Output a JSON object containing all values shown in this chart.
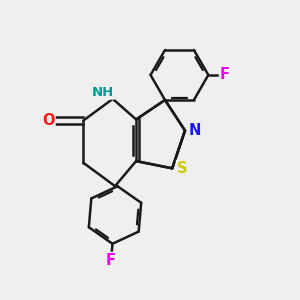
{
  "background_color": "#efefef",
  "bond_color": "#1a1a1a",
  "bond_width": 1.8,
  "atom_colors": {
    "F": "#ee00ee",
    "N": "#1515ff",
    "O": "#ff1515",
    "S": "#cccc00",
    "NH_color": "#009999",
    "C": "#1a1a1a"
  },
  "font_size_atom": 9.5,
  "fig_width": 3.0,
  "fig_height": 3.0,
  "xlim": [
    -2.0,
    2.5
  ],
  "ylim": [
    -2.8,
    2.5
  ]
}
